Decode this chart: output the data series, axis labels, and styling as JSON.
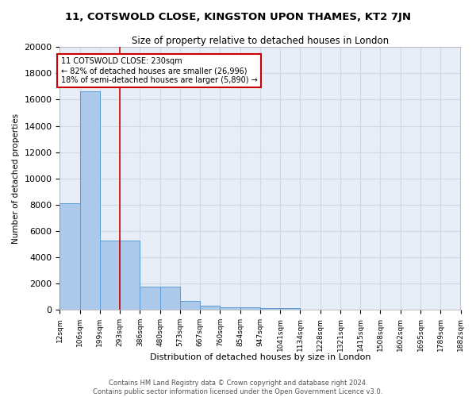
{
  "title1": "11, COTSWOLD CLOSE, KINGSTON UPON THAMES, KT2 7JN",
  "title2": "Size of property relative to detached houses in London",
  "xlabel": "Distribution of detached houses by size in London",
  "ylabel": "Number of detached properties",
  "bar_values": [
    8100,
    16600,
    5300,
    5300,
    1750,
    1750,
    700,
    300,
    230,
    200,
    170,
    150,
    0,
    0,
    0,
    0,
    0,
    0,
    0,
    0
  ],
  "tick_labels": [
    "12sqm",
    "106sqm",
    "199sqm",
    "293sqm",
    "386sqm",
    "480sqm",
    "573sqm",
    "667sqm",
    "760sqm",
    "854sqm",
    "947sqm",
    "1041sqm",
    "1134sqm",
    "1228sqm",
    "1321sqm",
    "1415sqm",
    "1508sqm",
    "1602sqm",
    "1695sqm",
    "1789sqm",
    "1882sqm"
  ],
  "red_line_after_bar": 2,
  "annotation_title": "11 COTSWOLD CLOSE: 230sqm",
  "annotation_line1": "← 82% of detached houses are smaller (26,996)",
  "annotation_line2": "18% of semi-detached houses are larger (5,890) →",
  "bar_color": "#adc9e9",
  "bar_edge_color": "#5b9bd5",
  "red_line_color": "#cc0000",
  "annotation_box_color": "#ffffff",
  "annotation_box_edge": "#cc0000",
  "bg_color": "#e8eef8",
  "grid_color": "#d0d8e8",
  "footer": "Contains HM Land Registry data © Crown copyright and database right 2024.\nContains public sector information licensed under the Open Government Licence v3.0.",
  "ylim": [
    0,
    20000
  ],
  "yticks": [
    0,
    2000,
    4000,
    6000,
    8000,
    10000,
    12000,
    14000,
    16000,
    18000,
    20000
  ],
  "title1_fontsize": 9.5,
  "title2_fontsize": 8.5
}
